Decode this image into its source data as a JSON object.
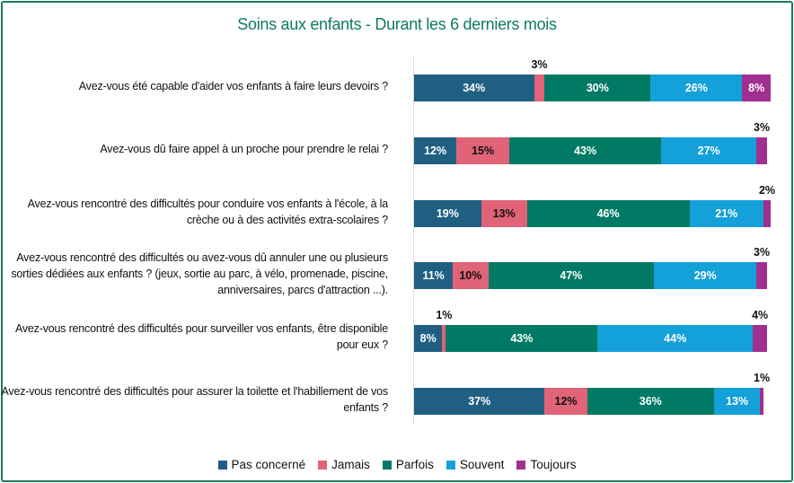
{
  "chart_data": {
    "type": "bar",
    "orientation": "horizontal",
    "stacked": true,
    "title": "Soins aux enfants  - Durant les 6 derniers mois",
    "categories": [
      "Avez-vous été capable d'aider vos enfants à faire leurs devoirs ?",
      "Avez-vous dû faire appel à un proche pour prendre le relai ?",
      "Avez-vous rencontré des difficultés pour conduire vos enfants à l'école, à la crèche ou à des activités extra-scolaires ?",
      "Avez-vous rencontré des difficultés ou avez-vous dû annuler une ou plusieurs sorties dédiées aux enfants ? (jeux, sortie au parc, à vélo, promenade, piscine, anniversaires, parcs d'attraction ...).",
      "Avez-vous rencontré des difficultés pour surveiller vos enfants, être disponible pour eux ?",
      "Avez-vous rencontré des difficultés pour assurer la toilette et l'habillement de vos enfants ?"
    ],
    "series": [
      {
        "name": "Pas concerné",
        "color": "#1f5f82",
        "values": [
          34,
          12,
          19,
          11,
          8,
          37
        ]
      },
      {
        "name": "Jamais",
        "color": "#e06377",
        "values": [
          3,
          15,
          13,
          10,
          1,
          12
        ]
      },
      {
        "name": "Parfois",
        "color": "#007a64",
        "values": [
          30,
          43,
          46,
          47,
          43,
          36
        ]
      },
      {
        "name": "Souvent",
        "color": "#14a0d8",
        "values": [
          26,
          27,
          21,
          29,
          44,
          13
        ]
      },
      {
        "name": "Toujours",
        "color": "#a0308f",
        "values": [
          8,
          3,
          2,
          3,
          4,
          1
        ]
      }
    ],
    "unit": "%",
    "legend": "bottom",
    "grid": false
  }
}
